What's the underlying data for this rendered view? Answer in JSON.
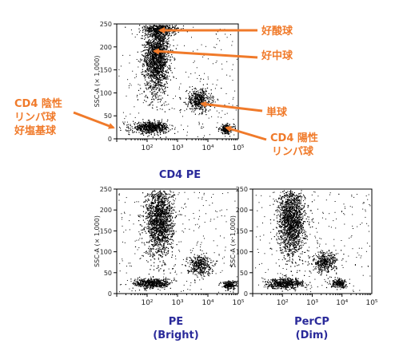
{
  "colors": {
    "annotation": "#f07a2a",
    "caption": "#2a2a9a",
    "dots": "#000000"
  },
  "annotations": {
    "eosinophil": "好酸球",
    "neutrophil": "好中球",
    "monocyte": "単球",
    "cd4_pos_lymph_line1": "CD4 陽性",
    "cd4_pos_lymph_line2": "リンパ球",
    "cd4_neg_line1": "CD4 陰性",
    "cd4_neg_line2": "リンパ球",
    "cd4_neg_line3": "好塩基球"
  },
  "chart_data": [
    {
      "type": "scatter",
      "xlabel": "CD4 PE",
      "ylabel": "SSC-A (× 1,000)",
      "xscale": "log",
      "xlim": [
        10,
        100000
      ],
      "ylim": [
        0,
        250
      ],
      "x_ticks": [
        "10²",
        "10³",
        "10⁴",
        "10⁵"
      ],
      "y_ticks": [
        "0",
        "50",
        "100",
        "150",
        "200",
        "250"
      ],
      "populations": [
        {
          "name": "好酸球",
          "x_center": 300,
          "y_center": 240,
          "x_spread_log": 0.3,
          "y_spread": 8,
          "count": 350
        },
        {
          "name": "好中球",
          "x_center": 200,
          "y_center": 180,
          "x_spread_log": 0.2,
          "y_spread": 40,
          "count": 1800
        },
        {
          "name": "単球",
          "x_center": 5000,
          "y_center": 85,
          "x_spread_log": 0.2,
          "y_spread": 12,
          "count": 450
        },
        {
          "name": "CD4 陽性 リンパ球",
          "x_center": 40000,
          "y_center": 22,
          "x_spread_log": 0.12,
          "y_spread": 5,
          "count": 220
        },
        {
          "name": "CD4 陰性 リンパ球 好塩基球",
          "x_center": 130,
          "y_center": 25,
          "x_spread_log": 0.3,
          "y_spread": 6,
          "count": 600
        }
      ]
    },
    {
      "type": "scatter",
      "xlabel": "PE",
      "xlabel_line2": "(Bright)",
      "ylabel": "SSC-A (× 1,000)",
      "xscale": "log",
      "xlim": [
        10,
        100000
      ],
      "ylim": [
        0,
        250
      ],
      "x_ticks": [
        "10²",
        "10³",
        "10⁴",
        "10⁵"
      ],
      "y_ticks": [
        "0",
        "50",
        "100",
        "150",
        "200",
        "250"
      ],
      "populations": [
        {
          "x_center": 250,
          "y_center": 175,
          "x_spread_log": 0.22,
          "y_spread": 42,
          "count": 1600
        },
        {
          "x_center": 5000,
          "y_center": 70,
          "x_spread_log": 0.2,
          "y_spread": 12,
          "count": 350
        },
        {
          "x_center": 50000,
          "y_center": 22,
          "x_spread_log": 0.12,
          "y_spread": 5,
          "count": 200
        },
        {
          "x_center": 150,
          "y_center": 25,
          "x_spread_log": 0.3,
          "y_spread": 6,
          "count": 500
        }
      ]
    },
    {
      "type": "scatter",
      "xlabel": "PerCP",
      "xlabel_line2": "(Dim)",
      "ylabel": "SSC-A (× 1,000)",
      "xscale": "log",
      "xlim": [
        10,
        100000
      ],
      "ylim": [
        0,
        250
      ],
      "x_ticks": [
        "10²",
        "10³",
        "10⁴",
        "10⁵"
      ],
      "y_ticks": [
        "0",
        "50",
        "100",
        "150",
        "200",
        "250"
      ],
      "populations": [
        {
          "x_center": 200,
          "y_center": 175,
          "x_spread_log": 0.22,
          "y_spread": 42,
          "count": 1600
        },
        {
          "x_center": 2500,
          "y_center": 75,
          "x_spread_log": 0.2,
          "y_spread": 12,
          "count": 350
        },
        {
          "x_center": 8000,
          "y_center": 25,
          "x_spread_log": 0.15,
          "y_spread": 5,
          "count": 200
        },
        {
          "x_center": 120,
          "y_center": 25,
          "x_spread_log": 0.3,
          "y_spread": 6,
          "count": 500
        }
      ]
    }
  ]
}
